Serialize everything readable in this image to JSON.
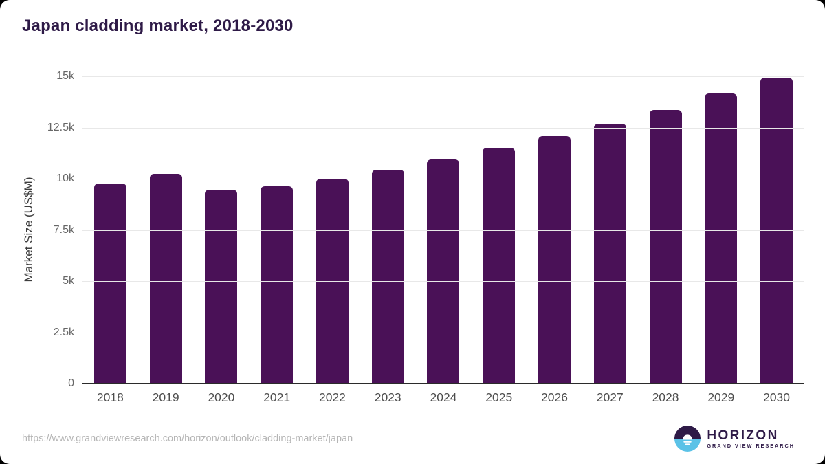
{
  "page": {
    "source_url": "https://www.grandviewresearch.com/horizon/outlook/cladding-market/japan"
  },
  "logo": {
    "name": "HORIZON",
    "subtitle": "GRAND VIEW RESEARCH",
    "icon": "horizon-sun-circle-icon"
  },
  "colors": {
    "background": "#000000",
    "card": "#ffffff",
    "bar": "#4a1157",
    "title": "#2e1a47",
    "gridline": "#e8e8e8",
    "axis_line": "#2b2b2b",
    "ytick_label": "#666666",
    "xtick_label": "#4d4d4d",
    "axis_title": "#3d3d3d",
    "url_text": "#b5b5b5",
    "logo_dark": "#2e1a47",
    "logo_blue": "#5bc2e7"
  },
  "chart_data": {
    "type": "bar",
    "title": "Japan cladding market, 2018-2030",
    "xlabel": "",
    "ylabel": "Market Size (US$M)",
    "categories": [
      "2018",
      "2019",
      "2020",
      "2021",
      "2022",
      "2023",
      "2024",
      "2025",
      "2026",
      "2027",
      "2028",
      "2029",
      "2030"
    ],
    "values": [
      9780,
      10240,
      9470,
      9640,
      9990,
      10450,
      10950,
      11510,
      12080,
      12680,
      13360,
      14170,
      14950
    ],
    "ylim": [
      0,
      15000
    ],
    "yticks": [
      0,
      2500,
      5000,
      7500,
      10000,
      12500,
      15000
    ],
    "ytick_labels": [
      "0",
      "2.5k",
      "5k",
      "7.5k",
      "10k",
      "12.5k",
      "15k"
    ],
    "grid": "horizontal-only",
    "legend": "none",
    "bar_color": "#4a1157"
  }
}
